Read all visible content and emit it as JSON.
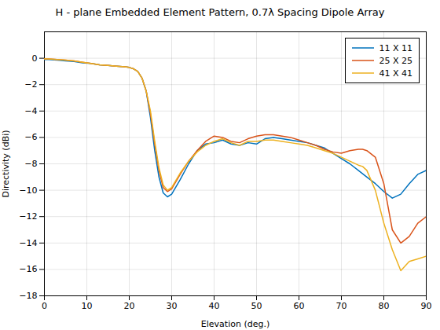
{
  "chart_data": {
    "type": "line",
    "title": "H - plane Embedded Element Pattern, 0.7λ Spacing Dipole Array",
    "xlabel": "Elevation (deg.)",
    "ylabel": "Directivity (dBi)",
    "xlim": [
      0,
      90
    ],
    "ylim": [
      -18,
      2
    ],
    "xticks": [
      0,
      10,
      20,
      30,
      40,
      50,
      60,
      70,
      80,
      90
    ],
    "yticks": [
      0,
      -2,
      -4,
      -6,
      -8,
      -10,
      -12,
      -14,
      -16,
      -18
    ],
    "grid": true,
    "legend": "upper right",
    "series": [
      {
        "name": "11 X 11",
        "color": "#0072BD",
        "x": [
          0,
          1,
          3,
          5,
          7,
          9,
          11,
          13,
          15,
          17,
          19,
          20,
          21,
          22,
          23,
          24,
          25,
          26,
          27,
          28,
          29,
          30,
          32,
          34,
          36,
          38,
          40,
          42,
          44,
          46,
          48,
          50,
          52,
          54,
          56,
          58,
          60,
          62,
          64,
          66,
          68,
          70,
          72,
          74,
          76,
          78,
          80,
          82,
          84,
          86,
          88,
          90
        ],
        "values": [
          -0.1,
          -0.1,
          -0.15,
          -0.2,
          -0.25,
          -0.35,
          -0.4,
          -0.5,
          -0.55,
          -0.6,
          -0.65,
          -0.7,
          -0.8,
          -1.0,
          -1.5,
          -2.5,
          -4.5,
          -7.0,
          -9.0,
          -10.2,
          -10.5,
          -10.3,
          -9.2,
          -8.0,
          -7.0,
          -6.5,
          -6.4,
          -6.2,
          -6.5,
          -6.6,
          -6.4,
          -6.5,
          -6.1,
          -6.0,
          -6.1,
          -6.2,
          -6.3,
          -6.4,
          -6.6,
          -6.8,
          -7.2,
          -7.6,
          -8.0,
          -8.5,
          -9.0,
          -9.5,
          -10.1,
          -10.6,
          -10.3,
          -9.5,
          -8.8,
          -8.5
        ]
      },
      {
        "name": "25 X 25",
        "color": "#D95319",
        "x": [
          0,
          1,
          3,
          5,
          7,
          9,
          11,
          13,
          15,
          17,
          19,
          20,
          21,
          22,
          23,
          24,
          25,
          26,
          27,
          28,
          29,
          30,
          32,
          34,
          36,
          38,
          40,
          42,
          44,
          46,
          48,
          50,
          52,
          54,
          56,
          58,
          60,
          62,
          64,
          66,
          68,
          70,
          72,
          74,
          75,
          76,
          78,
          80,
          82,
          84,
          86,
          88,
          90
        ],
        "values": [
          -0.05,
          -0.05,
          -0.1,
          -0.15,
          -0.2,
          -0.3,
          -0.4,
          -0.5,
          -0.55,
          -0.6,
          -0.65,
          -0.7,
          -0.8,
          -1.0,
          -1.5,
          -2.5,
          -4.2,
          -6.5,
          -8.5,
          -9.8,
          -10.1,
          -9.9,
          -8.8,
          -7.8,
          -7.0,
          -6.3,
          -5.9,
          -6.0,
          -6.3,
          -6.4,
          -6.1,
          -5.9,
          -5.8,
          -5.8,
          -5.9,
          -6.0,
          -6.2,
          -6.4,
          -6.6,
          -6.9,
          -7.1,
          -7.2,
          -7.0,
          -6.9,
          -6.9,
          -7.0,
          -7.5,
          -9.5,
          -13.0,
          -14.0,
          -13.5,
          -12.5,
          -12.0
        ]
      },
      {
        "name": "41 X 41",
        "color": "#EDB120",
        "x": [
          0,
          1,
          3,
          5,
          7,
          9,
          11,
          13,
          15,
          17,
          19,
          20,
          21,
          22,
          23,
          24,
          25,
          26,
          27,
          28,
          29,
          30,
          32,
          34,
          36,
          38,
          40,
          42,
          44,
          46,
          48,
          50,
          52,
          54,
          56,
          58,
          60,
          62,
          64,
          66,
          68,
          70,
          72,
          74,
          75,
          76,
          78,
          80,
          82,
          84,
          86,
          88,
          90
        ],
        "values": [
          -0.05,
          -0.05,
          -0.1,
          -0.15,
          -0.2,
          -0.3,
          -0.4,
          -0.5,
          -0.55,
          -0.6,
          -0.65,
          -0.7,
          -0.8,
          -1.0,
          -1.5,
          -2.5,
          -4.0,
          -6.3,
          -8.3,
          -9.6,
          -10.0,
          -9.8,
          -8.7,
          -7.8,
          -7.1,
          -6.6,
          -6.3,
          -6.1,
          -6.4,
          -6.6,
          -6.3,
          -6.3,
          -6.2,
          -6.2,
          -6.3,
          -6.4,
          -6.5,
          -6.6,
          -6.8,
          -7.0,
          -7.2,
          -7.5,
          -7.8,
          -8.1,
          -8.2,
          -8.5,
          -10.0,
          -12.5,
          -14.5,
          -16.1,
          -15.4,
          -15.2,
          -15.0
        ]
      }
    ]
  }
}
